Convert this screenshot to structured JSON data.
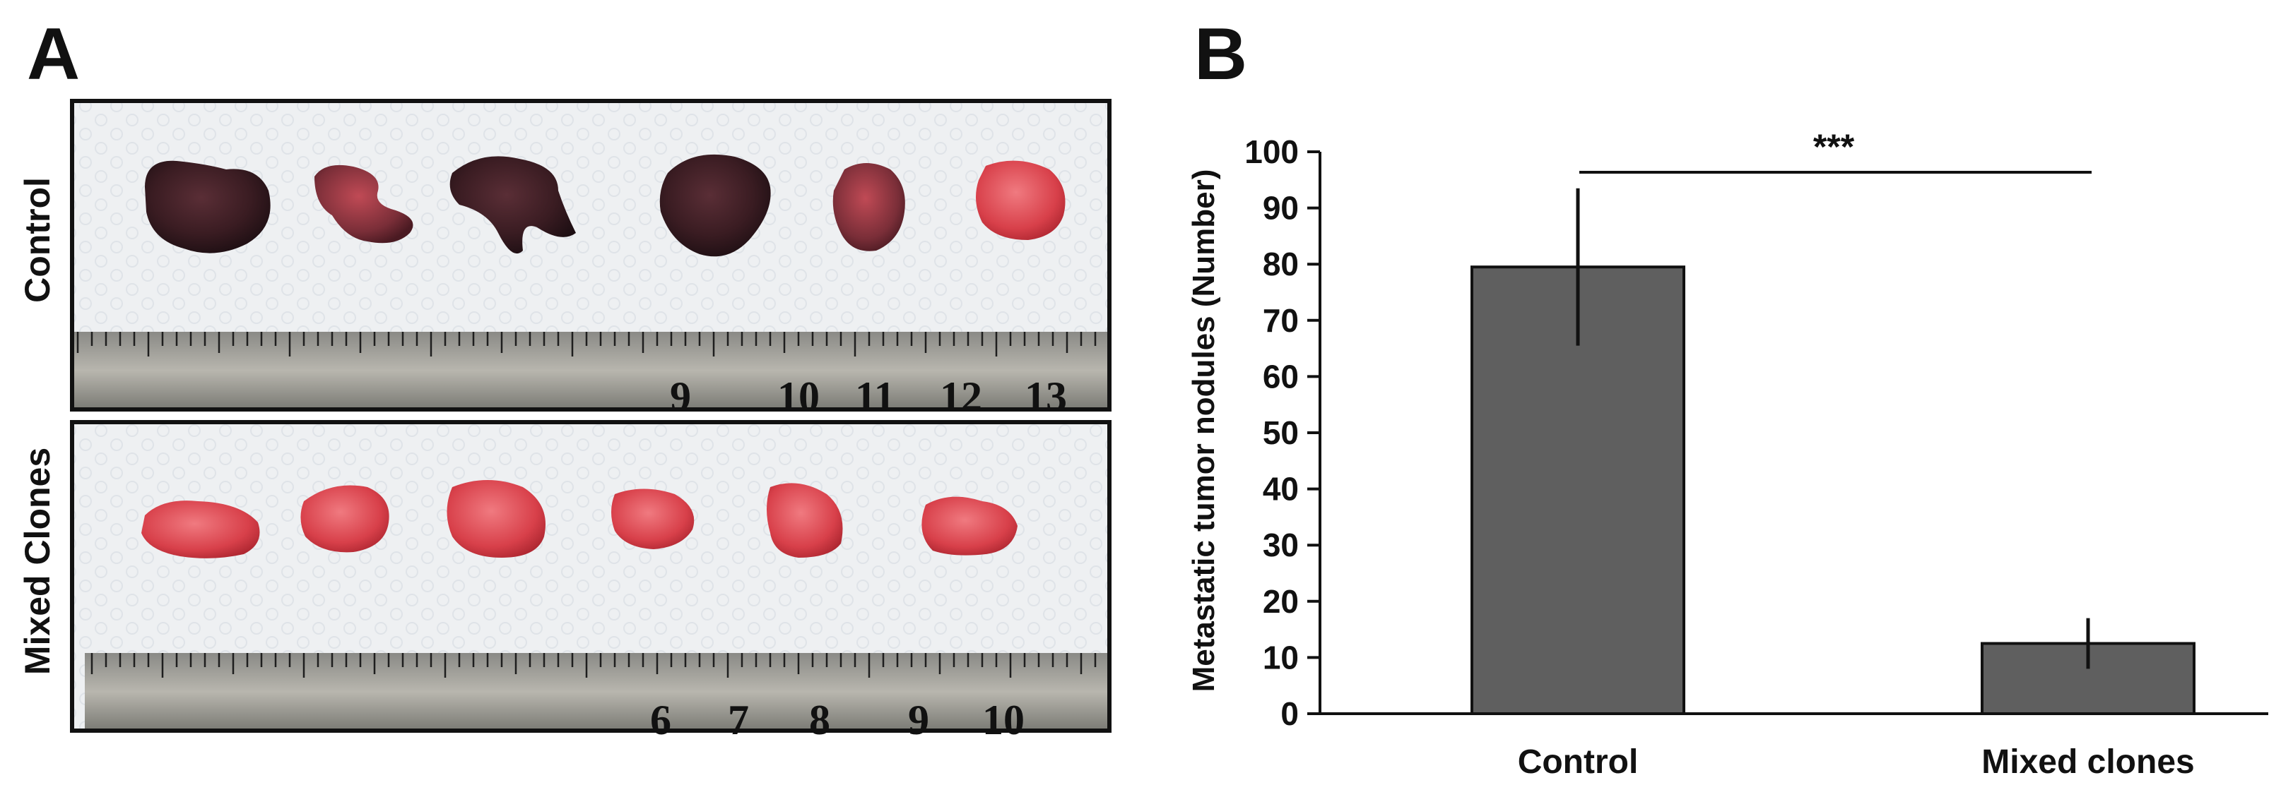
{
  "panel_a": {
    "letter": "A",
    "rows": [
      {
        "label": "Control",
        "tissue": "dark",
        "ruler_numbers": [
          "9",
          "10",
          "11",
          "12",
          "13"
        ]
      },
      {
        "label": "Mixed Clones",
        "tissue": "pink",
        "ruler_numbers": [
          "6",
          "7",
          "8",
          "9",
          "10"
        ]
      }
    ]
  },
  "panel_b": {
    "letter": "B",
    "chart_data": {
      "type": "bar",
      "categories": [
        "Control",
        "Mixed clones"
      ],
      "values": [
        79.5,
        12.5
      ],
      "errors": [
        14,
        4.5
      ],
      "ylabel": "Metastatic tumor nodules (Number)",
      "xlabel": "",
      "ylim": [
        0,
        100
      ],
      "yticks": [
        0,
        10,
        20,
        30,
        40,
        50,
        60,
        70,
        80,
        90,
        100
      ],
      "significance": "***",
      "bar_color": "#5f5f5f",
      "grid": false
    }
  }
}
